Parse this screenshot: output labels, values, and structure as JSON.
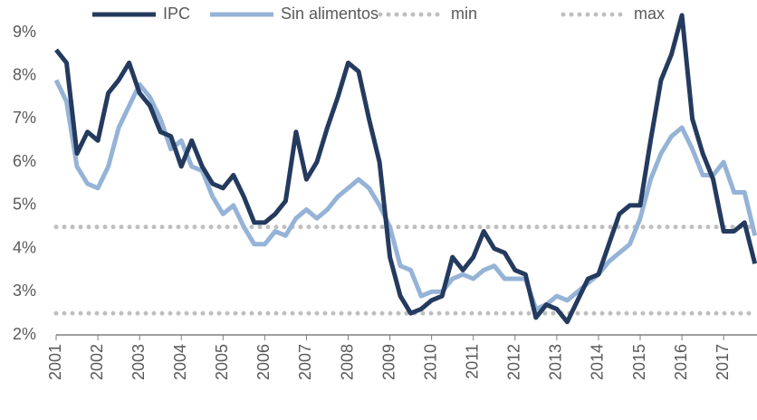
{
  "chart_data": {
    "type": "line",
    "x": [
      2001,
      2001.25,
      2001.5,
      2001.75,
      2002,
      2002.25,
      2002.5,
      2002.75,
      2003,
      2003.25,
      2003.5,
      2003.75,
      2004,
      2004.25,
      2004.5,
      2004.75,
      2005,
      2005.25,
      2005.5,
      2005.75,
      2006,
      2006.25,
      2006.5,
      2006.75,
      2007,
      2007.25,
      2007.5,
      2007.75,
      2008,
      2008.25,
      2008.5,
      2008.75,
      2009,
      2009.25,
      2009.5,
      2009.75,
      2010,
      2010.25,
      2010.5,
      2010.75,
      2011,
      2011.25,
      2011.5,
      2011.75,
      2012,
      2012.25,
      2012.5,
      2012.75,
      2013,
      2013.25,
      2013.5,
      2013.75,
      2014,
      2014.25,
      2014.5,
      2014.75,
      2015,
      2015.25,
      2015.5,
      2015.75,
      2016,
      2016.25,
      2016.5,
      2016.75,
      2017,
      2017.25,
      2017.5,
      2017.75
    ],
    "series": [
      {
        "name": "IPC",
        "color": "#243a5e",
        "values": [
          8.6,
          8.3,
          6.2,
          6.7,
          6.5,
          7.6,
          7.9,
          8.3,
          7.6,
          7.3,
          6.7,
          6.6,
          5.9,
          6.5,
          5.9,
          5.5,
          5.4,
          5.7,
          5.2,
          4.6,
          4.6,
          4.8,
          5.1,
          6.7,
          5.6,
          6.0,
          6.8,
          7.5,
          8.3,
          8.1,
          7.0,
          6.0,
          3.8,
          2.9,
          2.5,
          2.6,
          2.8,
          2.9,
          3.8,
          3.5,
          3.8,
          4.4,
          4.0,
          3.9,
          3.5,
          3.4,
          2.4,
          2.7,
          2.6,
          2.3,
          2.8,
          3.3,
          3.4,
          4.1,
          4.8,
          5.0,
          5.0,
          6.5,
          7.9,
          8.5,
          9.4,
          7.0,
          6.2,
          5.6,
          4.4,
          4.4,
          4.6,
          3.65
        ]
      },
      {
        "name": "Sin alimentos",
        "color": "#95b3d7",
        "values": [
          7.9,
          7.4,
          5.9,
          5.5,
          5.4,
          5.9,
          6.8,
          7.3,
          7.8,
          7.5,
          7.0,
          6.3,
          6.5,
          5.9,
          5.8,
          5.2,
          4.8,
          5.0,
          4.5,
          4.1,
          4.1,
          4.4,
          4.3,
          4.7,
          4.9,
          4.7,
          4.9,
          5.2,
          5.4,
          5.6,
          5.4,
          5.0,
          4.5,
          3.6,
          3.5,
          2.9,
          3.0,
          3.0,
          3.3,
          3.4,
          3.3,
          3.5,
          3.6,
          3.3,
          3.3,
          3.3,
          2.6,
          2.7,
          2.9,
          2.8,
          3.0,
          3.2,
          3.4,
          3.7,
          3.9,
          4.1,
          4.7,
          5.6,
          6.2,
          6.6,
          6.8,
          6.3,
          5.7,
          5.7,
          6.0,
          5.3,
          5.3,
          4.3
        ]
      }
    ],
    "reference_lines": [
      {
        "name": "min",
        "value": 2.5,
        "color": "#bfbfbf"
      },
      {
        "name": "max",
        "value": 4.5,
        "color": "#bfbfbf"
      }
    ],
    "xlim": [
      2001,
      2017.8
    ],
    "xticks": [
      2001,
      2002,
      2003,
      2004,
      2005,
      2006,
      2007,
      2008,
      2009,
      2010,
      2011,
      2012,
      2013,
      2014,
      2015,
      2016,
      2017
    ],
    "ylim": [
      2,
      9
    ],
    "yticks": [
      {
        "value": 2,
        "label": "2%"
      },
      {
        "value": 3,
        "label": "3%"
      },
      {
        "value": 4,
        "label": "4%"
      },
      {
        "value": 5,
        "label": "5%"
      },
      {
        "value": 6,
        "label": "6%"
      },
      {
        "value": 7,
        "label": "7%"
      },
      {
        "value": 8,
        "label": "8%"
      },
      {
        "value": 9,
        "label": "9%"
      }
    ],
    "grid": false
  }
}
